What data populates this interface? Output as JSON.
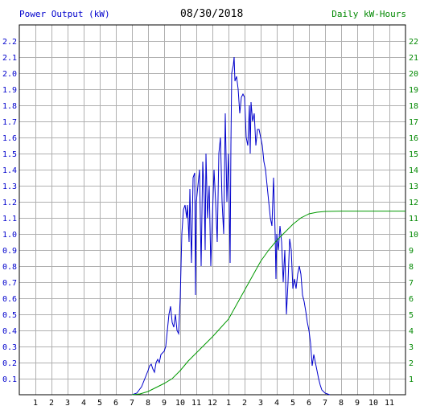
{
  "chart_data": {
    "type": "line",
    "date": "08/30/2018",
    "left_axis_label": "Power Output (kW)",
    "right_axis_label": "Daily kW-Hours",
    "x_ticks": [
      "1",
      "2",
      "3",
      "4",
      "5",
      "6",
      "7",
      "8",
      "9",
      "10",
      "11",
      "12",
      "1",
      "2",
      "3",
      "4",
      "5",
      "6",
      "7",
      "8",
      "9",
      "10",
      "11"
    ],
    "y_left_ticks": [
      "0.1",
      "0.2",
      "0.3",
      "0.4",
      "0.5",
      "0.6",
      "0.7",
      "0.8",
      "0.9",
      "1.0",
      "1.1",
      "1.2",
      "1.3",
      "1.4",
      "1.5",
      "1.6",
      "1.7",
      "1.8",
      "1.9",
      "2.0",
      "2.1",
      "2.2"
    ],
    "y_right_ticks": [
      "1",
      "2",
      "3",
      "4",
      "5",
      "6",
      "7",
      "8",
      "9",
      "10",
      "11",
      "12",
      "13",
      "14",
      "15",
      "16",
      "17",
      "18",
      "19",
      "20",
      "21",
      "22"
    ],
    "x_range_hours": [
      0,
      24
    ],
    "y_left_range": [
      0,
      2.3
    ],
    "y_right_range": [
      0,
      23
    ],
    "grid": true,
    "colors": {
      "power": "#0000cc",
      "energy": "#009900",
      "grid": "#b0b0b0",
      "left_axis": "#0000cc",
      "right_axis": "#008800"
    },
    "series": [
      {
        "name": "Power Output (kW)",
        "axis": "left",
        "points": [
          [
            7.0,
            0
          ],
          [
            7.3,
            0.01
          ],
          [
            7.6,
            0.05
          ],
          [
            7.8,
            0.1
          ],
          [
            8.0,
            0.15
          ],
          [
            8.1,
            0.18
          ],
          [
            8.2,
            0.19
          ],
          [
            8.3,
            0.16
          ],
          [
            8.4,
            0.14
          ],
          [
            8.5,
            0.2
          ],
          [
            8.6,
            0.22
          ],
          [
            8.7,
            0.2
          ],
          [
            8.8,
            0.25
          ],
          [
            9.0,
            0.27
          ],
          [
            9.1,
            0.3
          ],
          [
            9.2,
            0.4
          ],
          [
            9.3,
            0.5
          ],
          [
            9.4,
            0.55
          ],
          [
            9.5,
            0.45
          ],
          [
            9.6,
            0.42
          ],
          [
            9.7,
            0.5
          ],
          [
            9.8,
            0.4
          ],
          [
            9.9,
            0.38
          ],
          [
            10.0,
            0.6
          ],
          [
            10.1,
            1.0
          ],
          [
            10.2,
            1.15
          ],
          [
            10.3,
            1.18
          ],
          [
            10.4,
            1.1
          ],
          [
            10.45,
            1.18
          ],
          [
            10.55,
            0.95
          ],
          [
            10.6,
            1.28
          ],
          [
            10.7,
            0.82
          ],
          [
            10.8,
            1.35
          ],
          [
            10.9,
            1.38
          ],
          [
            10.95,
            0.62
          ],
          [
            11.0,
            1.2
          ],
          [
            11.1,
            1.3
          ],
          [
            11.2,
            1.4
          ],
          [
            11.3,
            0.8
          ],
          [
            11.4,
            1.45
          ],
          [
            11.5,
            1.2
          ],
          [
            11.55,
            0.9
          ],
          [
            11.6,
            1.5
          ],
          [
            11.7,
            1.1
          ],
          [
            11.8,
            1.3
          ],
          [
            11.9,
            0.8
          ],
          [
            12.0,
            1.1
          ],
          [
            12.1,
            1.4
          ],
          [
            12.2,
            1.2
          ],
          [
            12.3,
            0.95
          ],
          [
            12.4,
            1.5
          ],
          [
            12.5,
            1.6
          ],
          [
            12.6,
            1.2
          ],
          [
            12.7,
            1.0
          ],
          [
            12.8,
            1.75
          ],
          [
            12.9,
            1.2
          ],
          [
            13.0,
            1.5
          ],
          [
            13.1,
            0.82
          ],
          [
            13.15,
            1.55
          ],
          [
            13.2,
            2.0
          ],
          [
            13.3,
            2.05
          ],
          [
            13.35,
            2.1
          ],
          [
            13.4,
            1.95
          ],
          [
            13.5,
            1.98
          ],
          [
            13.6,
            1.9
          ],
          [
            13.7,
            1.75
          ],
          [
            13.8,
            1.85
          ],
          [
            13.9,
            1.87
          ],
          [
            14.0,
            1.85
          ],
          [
            14.1,
            1.6
          ],
          [
            14.2,
            1.55
          ],
          [
            14.3,
            1.8
          ],
          [
            14.35,
            1.5
          ],
          [
            14.4,
            1.82
          ],
          [
            14.5,
            1.7
          ],
          [
            14.6,
            1.75
          ],
          [
            14.7,
            1.55
          ],
          [
            14.8,
            1.65
          ],
          [
            14.9,
            1.65
          ],
          [
            15.0,
            1.6
          ],
          [
            15.1,
            1.55
          ],
          [
            15.2,
            1.45
          ],
          [
            15.3,
            1.4
          ],
          [
            15.4,
            1.3
          ],
          [
            15.5,
            1.2
          ],
          [
            15.6,
            1.1
          ],
          [
            15.7,
            1.05
          ],
          [
            15.8,
            1.35
          ],
          [
            15.9,
            1.0
          ],
          [
            15.95,
            0.72
          ],
          [
            16.0,
            1.0
          ],
          [
            16.1,
            0.9
          ],
          [
            16.2,
            1.05
          ],
          [
            16.3,
            0.95
          ],
          [
            16.4,
            0.7
          ],
          [
            16.5,
            0.9
          ],
          [
            16.6,
            0.5
          ],
          [
            16.7,
            0.7
          ],
          [
            16.8,
            0.97
          ],
          [
            16.9,
            0.9
          ],
          [
            17.0,
            0.66
          ],
          [
            17.1,
            0.72
          ],
          [
            17.2,
            0.66
          ],
          [
            17.3,
            0.75
          ],
          [
            17.4,
            0.8
          ],
          [
            17.5,
            0.75
          ],
          [
            17.6,
            0.62
          ],
          [
            17.7,
            0.58
          ],
          [
            17.8,
            0.52
          ],
          [
            17.9,
            0.45
          ],
          [
            18.0,
            0.4
          ],
          [
            18.1,
            0.32
          ],
          [
            18.2,
            0.18
          ],
          [
            18.3,
            0.25
          ],
          [
            18.4,
            0.2
          ],
          [
            18.5,
            0.15
          ],
          [
            18.6,
            0.1
          ],
          [
            18.7,
            0.06
          ],
          [
            18.8,
            0.03
          ],
          [
            19.0,
            0.01
          ],
          [
            19.3,
            0
          ]
        ]
      },
      {
        "name": "Daily kW-Hours",
        "axis": "right",
        "points": [
          [
            7.0,
            0
          ],
          [
            7.5,
            0.05
          ],
          [
            8.0,
            0.2
          ],
          [
            8.5,
            0.45
          ],
          [
            9.0,
            0.7
          ],
          [
            9.5,
            1.0
          ],
          [
            10.0,
            1.5
          ],
          [
            10.5,
            2.1
          ],
          [
            11.0,
            2.6
          ],
          [
            11.5,
            3.1
          ],
          [
            12.0,
            3.6
          ],
          [
            12.5,
            4.15
          ],
          [
            13.0,
            4.7
          ],
          [
            13.5,
            5.6
          ],
          [
            14.0,
            6.5
          ],
          [
            14.5,
            7.4
          ],
          [
            15.0,
            8.3
          ],
          [
            15.5,
            9.0
          ],
          [
            16.0,
            9.6
          ],
          [
            16.5,
            10.1
          ],
          [
            17.0,
            10.6
          ],
          [
            17.5,
            11.0
          ],
          [
            18.0,
            11.25
          ],
          [
            18.5,
            11.35
          ],
          [
            19.0,
            11.4
          ],
          [
            20.0,
            11.42
          ],
          [
            24.0,
            11.42
          ]
        ]
      }
    ]
  }
}
